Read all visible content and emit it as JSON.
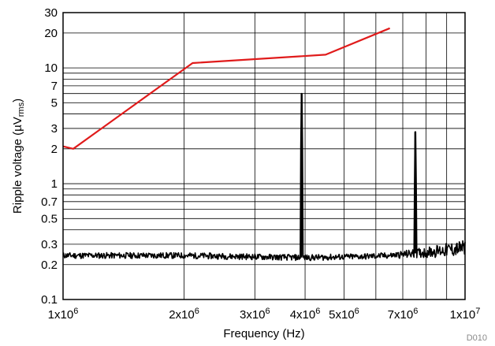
{
  "chart_data": {
    "type": "line",
    "xlabel": "Frequency (Hz)",
    "ylabel_main": "Ripple voltage (µV",
    "ylabel_sub": "rms",
    "ylabel_close": ")",
    "x_scale": "log",
    "y_scale": "log",
    "xlim": [
      1000000,
      10000000
    ],
    "ylim": [
      0.1,
      30
    ],
    "grid": true,
    "figure_code": "D010",
    "x_ticks": [
      {
        "value": 1000000,
        "base": "1x10",
        "exp": "6"
      },
      {
        "value": 2000000,
        "base": "2x10",
        "exp": "6"
      },
      {
        "value": 3000000,
        "base": "3x10",
        "exp": "6"
      },
      {
        "value": 4000000,
        "base": "4x10",
        "exp": "6"
      },
      {
        "value": 5000000,
        "base": "5x10",
        "exp": "6"
      },
      {
        "value": 7000000,
        "base": "7x10",
        "exp": "6"
      },
      {
        "value": 10000000,
        "base": "1x10",
        "exp": "7"
      }
    ],
    "x_minor_grid": [
      6000000,
      8000000,
      9000000
    ],
    "y_ticks": [
      {
        "value": 0.1,
        "label": "0.1"
      },
      {
        "value": 0.2,
        "label": "0.2"
      },
      {
        "value": 0.3,
        "label": "0.3"
      },
      {
        "value": 0.5,
        "label": "0.5"
      },
      {
        "value": 0.7,
        "label": "0.7"
      },
      {
        "value": 1,
        "label": "1"
      },
      {
        "value": 2,
        "label": "2"
      },
      {
        "value": 3,
        "label": "3"
      },
      {
        "value": 5,
        "label": "5"
      },
      {
        "value": 7,
        "label": "7"
      },
      {
        "value": 10,
        "label": "10"
      },
      {
        "value": 20,
        "label": "20"
      },
      {
        "value": 30,
        "label": "30"
      }
    ],
    "y_minor_grid": [
      0.4,
      0.6,
      0.8,
      0.9,
      4,
      6,
      8,
      9
    ],
    "series": [
      {
        "color": "#e01b1b",
        "style": "line",
        "points": [
          [
            1000000,
            2.1
          ],
          [
            1060000,
            2.0
          ],
          [
            2100000,
            11.0
          ],
          [
            4500000,
            13.0
          ],
          [
            6500000,
            22.0
          ]
        ]
      },
      {
        "color": "#000000",
        "style": "noise",
        "noise_floor": [
          [
            1000000,
            0.24
          ],
          [
            2000000,
            0.24
          ],
          [
            4000000,
            0.23
          ],
          [
            5500000,
            0.235
          ],
          [
            6500000,
            0.24
          ],
          [
            7500000,
            0.25
          ],
          [
            10000000,
            0.28
          ]
        ],
        "spikes": [
          [
            3920000,
            6.0
          ],
          [
            7520000,
            2.8
          ]
        ]
      }
    ]
  }
}
